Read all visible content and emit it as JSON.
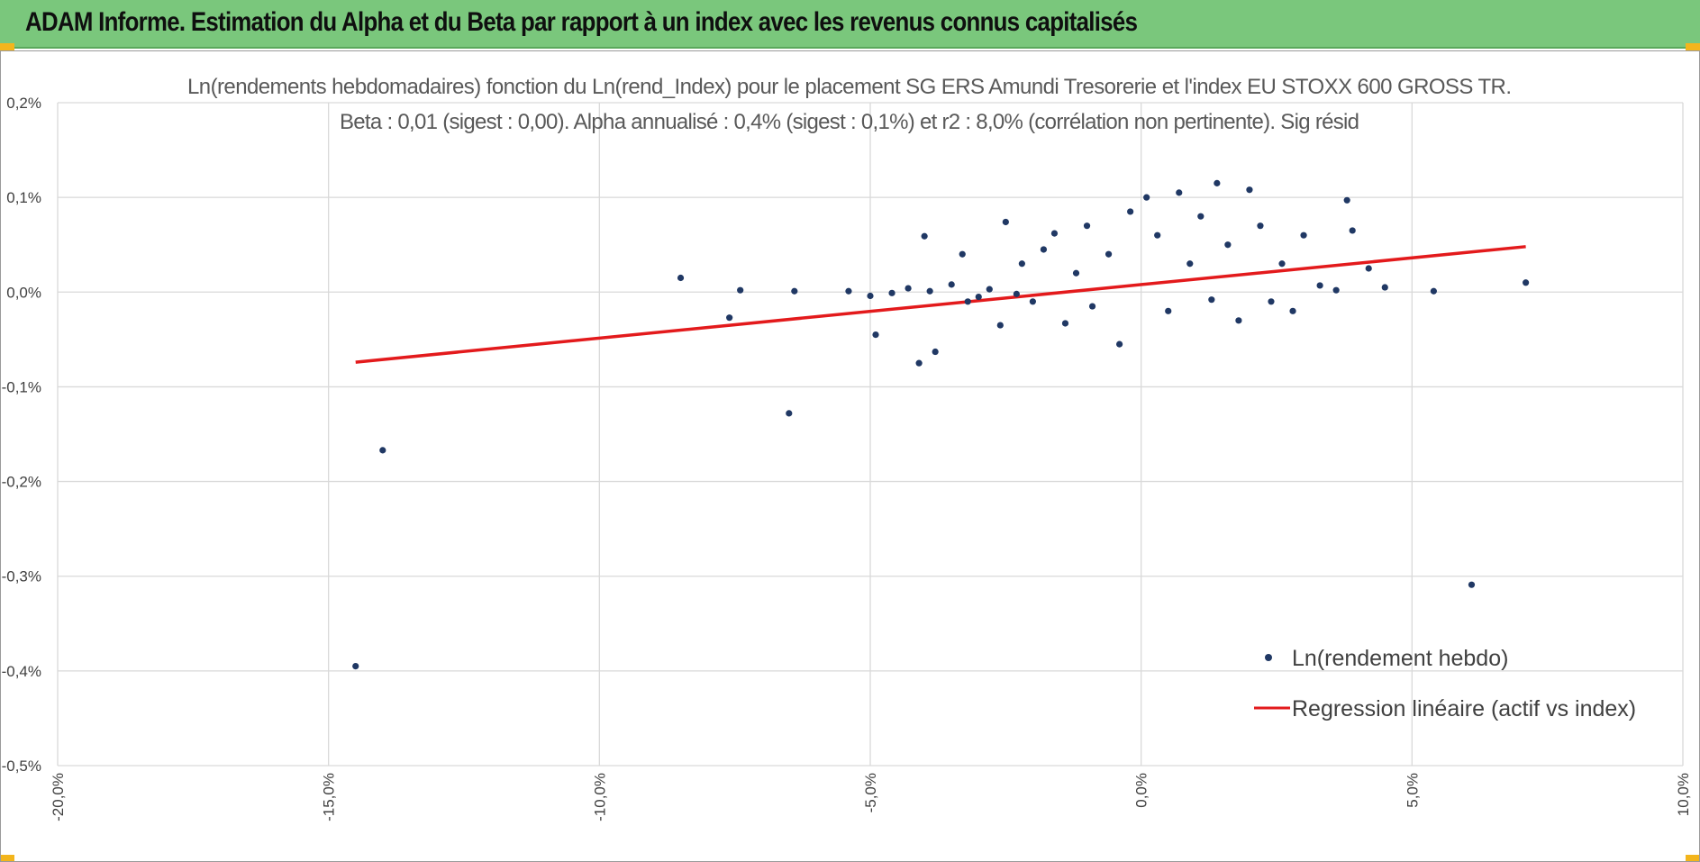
{
  "header": {
    "title": "ADAM Informe. Estimation du Alpha et du Beta par rapport à un index avec les revenus connus capitalisés"
  },
  "colors": {
    "banner": "#7ac77c",
    "accent": "#f3b51c",
    "points": "#203864",
    "regression": "#e31a1c",
    "grid": "#d9d9d9"
  },
  "chart_data": {
    "type": "scatter",
    "title_line1": "Ln(rendements hebdomadaires) fonction du Ln(rend_Index) pour le placement SG ERS Amundi Tresorerie  et l'index EU STOXX 600 GROSS TR.",
    "title_line2": "Beta : 0,01 (sigest : 0,00). Alpha annualisé : 0,4% (sigest : 0,1%) et r2 : 8,0% (corrélation non pertinente). Sig résid",
    "xlabel": "",
    "ylabel": "",
    "xlim": [
      -20,
      10
    ],
    "ylim": [
      -0.5,
      0.2
    ],
    "grid": true,
    "x_ticks": [
      -20,
      -15,
      -10,
      -5,
      0,
      5,
      10
    ],
    "x_tick_labels": [
      "-20,0%",
      "-15,0%",
      "-10,0%",
      "-5,0%",
      "0,0%",
      "5,0%",
      "10,0%"
    ],
    "y_ticks": [
      0.2,
      0.1,
      0.0,
      -0.1,
      -0.2,
      -0.3,
      -0.4,
      -0.5
    ],
    "y_tick_labels": [
      "0,2%",
      "0,1%",
      "0,0%",
      "-0,1%",
      "-0,2%",
      "-0,3%",
      "-0,4%",
      "-0,5%"
    ],
    "legend": {
      "position": "bottom-right",
      "entries": [
        "Ln(rendement hebdo)",
        "Regression linéaire (actif vs index)"
      ]
    },
    "series": [
      {
        "name": "Ln(rendement hebdo)",
        "kind": "scatter",
        "points": [
          [
            -14.5,
            -0.395
          ],
          [
            -14.0,
            -0.167
          ],
          [
            -8.5,
            0.015
          ],
          [
            -7.6,
            -0.027
          ],
          [
            -7.4,
            0.002
          ],
          [
            -6.5,
            -0.128
          ],
          [
            -6.4,
            0.001
          ],
          [
            -5.4,
            0.001
          ],
          [
            -5.0,
            -0.004
          ],
          [
            -4.9,
            -0.045
          ],
          [
            -4.6,
            -0.001
          ],
          [
            -4.3,
            0.004
          ],
          [
            -4.1,
            -0.075
          ],
          [
            -4.0,
            0.059
          ],
          [
            -3.9,
            0.001
          ],
          [
            -3.8,
            -0.063
          ],
          [
            -3.5,
            0.008
          ],
          [
            -3.3,
            0.04
          ],
          [
            -3.2,
            -0.01
          ],
          [
            -3.0,
            -0.005
          ],
          [
            -2.8,
            0.003
          ],
          [
            -2.6,
            -0.035
          ],
          [
            -2.5,
            0.074
          ],
          [
            -2.3,
            -0.002
          ],
          [
            -2.2,
            0.03
          ],
          [
            -2.0,
            -0.01
          ],
          [
            -1.8,
            0.045
          ],
          [
            -1.6,
            0.062
          ],
          [
            -1.4,
            -0.033
          ],
          [
            -1.2,
            0.02
          ],
          [
            -1.0,
            0.07
          ],
          [
            -0.9,
            -0.015
          ],
          [
            -0.6,
            0.04
          ],
          [
            -0.4,
            -0.055
          ],
          [
            -0.2,
            0.085
          ],
          [
            0.1,
            0.1
          ],
          [
            0.3,
            0.06
          ],
          [
            0.5,
            -0.02
          ],
          [
            0.7,
            0.105
          ],
          [
            0.9,
            0.03
          ],
          [
            1.1,
            0.08
          ],
          [
            1.3,
            -0.008
          ],
          [
            1.4,
            0.115
          ],
          [
            1.6,
            0.05
          ],
          [
            1.8,
            -0.03
          ],
          [
            2.0,
            0.108
          ],
          [
            2.2,
            0.07
          ],
          [
            2.4,
            -0.01
          ],
          [
            2.6,
            0.03
          ],
          [
            2.8,
            -0.02
          ],
          [
            3.0,
            0.06
          ],
          [
            3.3,
            0.007
          ],
          [
            3.6,
            0.002
          ],
          [
            3.8,
            0.097
          ],
          [
            3.9,
            0.065
          ],
          [
            4.2,
            0.025
          ],
          [
            4.5,
            0.005
          ],
          [
            5.4,
            0.001
          ],
          [
            6.1,
            -0.309
          ],
          [
            7.1,
            0.01
          ]
        ]
      },
      {
        "name": "Regression linéaire (actif vs index)",
        "kind": "line",
        "x": [
          -14.5,
          7.1
        ],
        "y": [
          -0.074,
          0.048
        ]
      }
    ]
  }
}
